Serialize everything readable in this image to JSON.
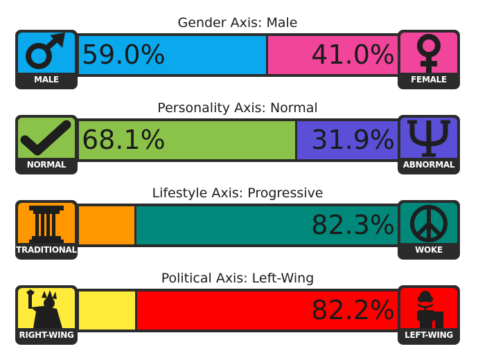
{
  "axes": [
    {
      "title": "Gender Axis: Male",
      "left": {
        "label": "MALE",
        "icon": "male-symbol-icon",
        "color": "#0aa9ee",
        "percent": 59.0,
        "percent_text": "59.0%"
      },
      "right": {
        "label": "FEMALE",
        "icon": "female-symbol-icon",
        "color": "#f0459b",
        "percent": 41.0,
        "percent_text": "41.0%"
      }
    },
    {
      "title": "Personality Axis: Normal",
      "left": {
        "label": "NORMAL",
        "icon": "checkmark-icon",
        "color": "#8bc34a",
        "percent": 68.1,
        "percent_text": "68.1%"
      },
      "right": {
        "label": "ABNORMAL",
        "icon": "psi-icon",
        "color": "#5a4fd6",
        "percent": 31.9,
        "percent_text": "31.9%"
      }
    },
    {
      "title": "Lifestyle Axis: Progressive",
      "left": {
        "label": "TRADITIONAL",
        "icon": "greek-column-icon",
        "color": "#ff9800",
        "percent": 17.7,
        "percent_text": ""
      },
      "right": {
        "label": "WOKE",
        "icon": "peace-sign-icon",
        "color": "#00897b",
        "percent": 82.3,
        "percent_text": "82.3%"
      }
    },
    {
      "title": "Political Axis: Left-Wing",
      "left": {
        "label": "RIGHT-WING",
        "icon": "statue-of-liberty-icon",
        "color": "#ffeb3b",
        "percent": 17.8,
        "percent_text": ""
      },
      "right": {
        "label": "LEFT-WING",
        "icon": "rose-fist-icon",
        "color": "#ff0000",
        "percent": 82.2,
        "percent_text": "82.2%"
      }
    }
  ]
}
